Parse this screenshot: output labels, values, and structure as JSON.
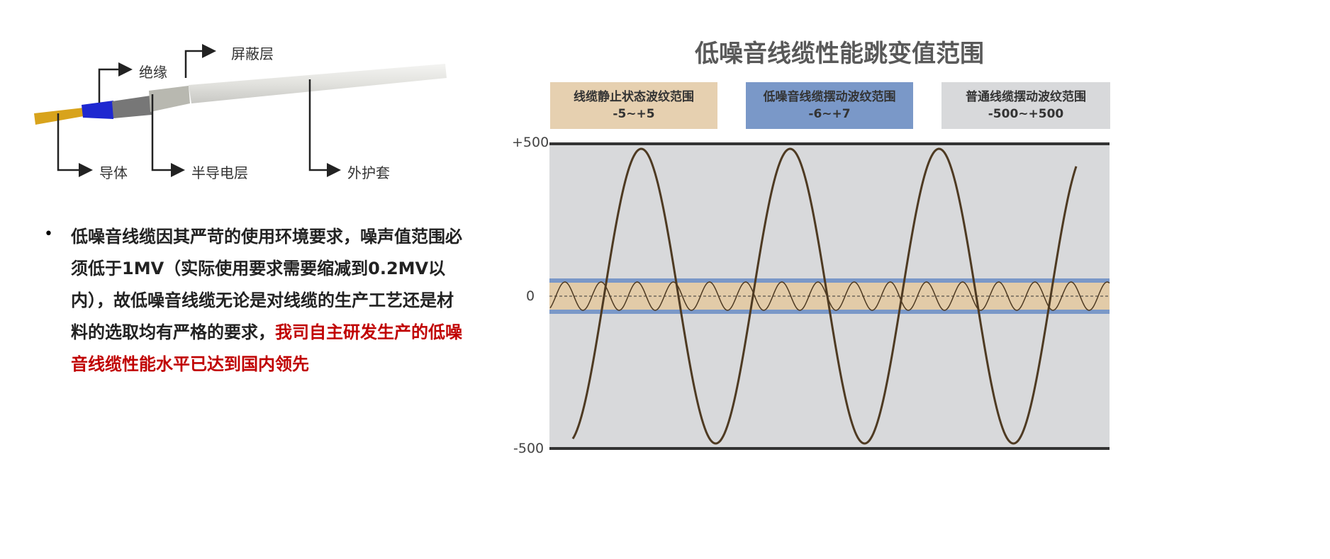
{
  "cable": {
    "labels": {
      "insulation": "绝缘",
      "shield": "屏蔽层",
      "conductor": "导体",
      "semiconductive": "半导电层",
      "jacket": "外护套"
    }
  },
  "bullet": {
    "symbol": "•",
    "text_normal": "低噪音线缆因其严苛的使用环境要求，噪声值范围必须低于1MV（实际使用要求需要缩减到0.2MV以内），故低噪音线缆无论是对线缆的生产工艺还是材料的选取均有严格的要求，",
    "text_highlight": "我司自主研发生产的低噪音线缆性能水平已达到国内领先"
  },
  "chart": {
    "title": "低噪音线缆性能跳变值范围",
    "legend": [
      {
        "name": "线缆静止状态波纹范围",
        "range": "-5~+5",
        "color": "#e6d0b0"
      },
      {
        "name": "低噪音线缆摆动波纹范围",
        "range": "-6~+7",
        "color": "#7a98c8"
      },
      {
        "name": "普通线缆摆动波纹范围",
        "range": "-500~+500",
        "color": "#d8d9db"
      }
    ],
    "yticks": {
      "top": "+500",
      "zero": "0",
      "bottom": "-500"
    },
    "colors": {
      "wave": "#4e3a22",
      "band_blue": "#7a98c8",
      "band_tan": "#e2cba8",
      "plot_bg": "#d8d9db"
    }
  }
}
